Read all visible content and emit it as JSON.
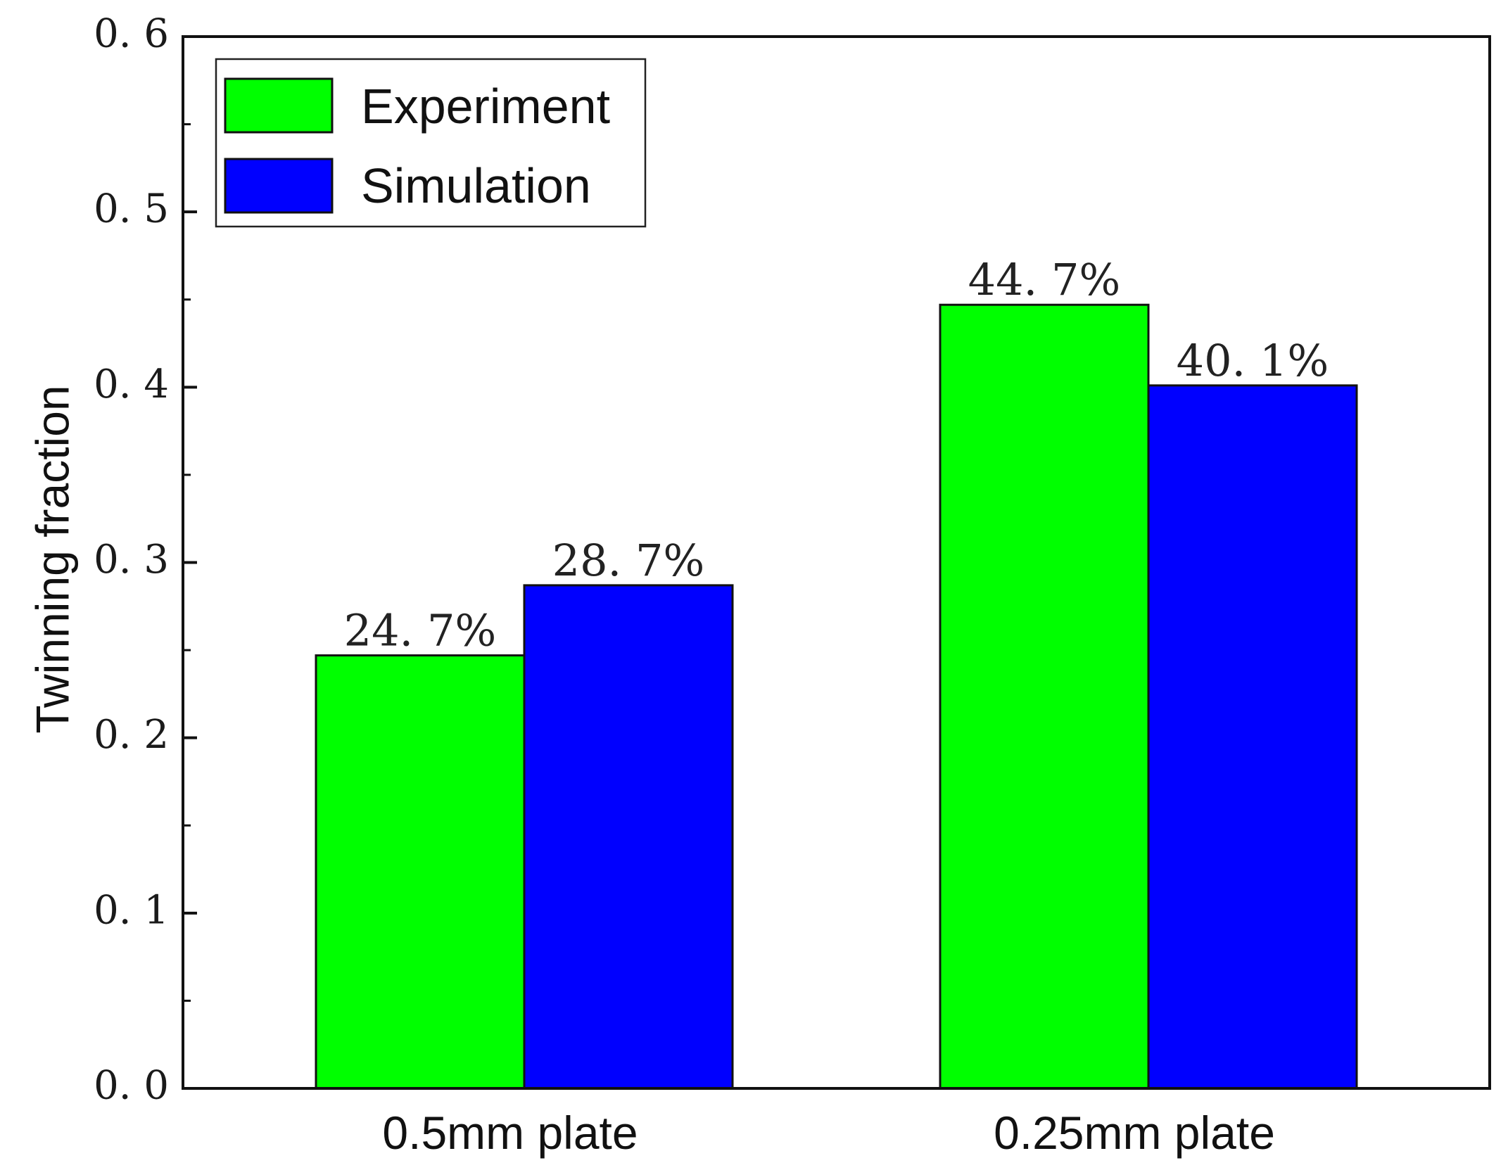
{
  "chart_data": {
    "type": "bar",
    "title": "",
    "xlabel": "",
    "ylabel": "Twinning fraction",
    "ylim": [
      0,
      0.6
    ],
    "yticks": [
      0.0,
      0.1,
      0.2,
      0.3,
      0.4,
      0.5,
      0.6
    ],
    "ytick_labels": [
      "0. 0",
      "0. 1",
      "0. 2",
      "0. 3",
      "0. 4",
      "0. 5",
      "0. 6"
    ],
    "categories": [
      "0.5mm plate",
      "0.25mm plate"
    ],
    "series": [
      {
        "name": "Experiment",
        "color": "#00ff00",
        "values": [
          0.247,
          0.447
        ],
        "labels": [
          "24. 7%",
          "44. 7%"
        ]
      },
      {
        "name": "Simulation",
        "color": "#0000ff",
        "values": [
          0.287,
          0.401
        ],
        "labels": [
          "28. 7%",
          "40. 1%"
        ]
      }
    ],
    "grid": false,
    "legend_position": "top-left"
  }
}
